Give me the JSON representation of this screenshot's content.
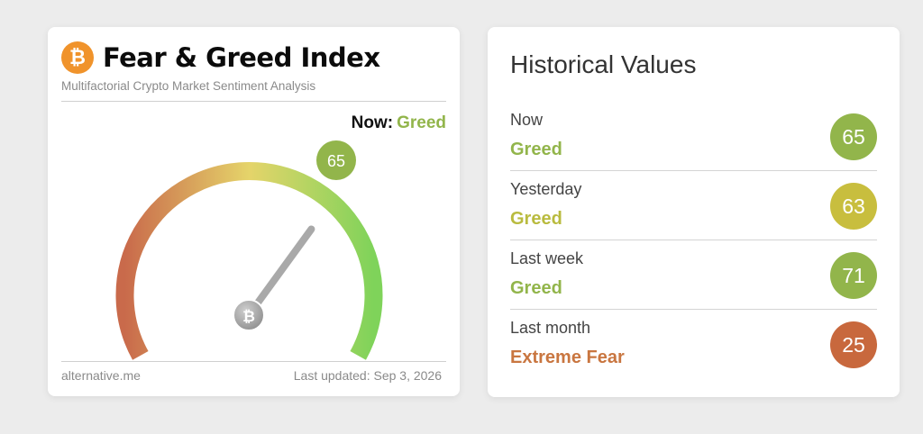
{
  "index_card": {
    "logo_glyph": "₿",
    "title": "Fear & Greed Index",
    "subtitle": "Multifactorial Crypto Market Sentiment Analysis",
    "now_label": "Now:",
    "now_value": "Greed",
    "gauge": {
      "value": 65,
      "value_label": "65",
      "min": 0,
      "max": 100,
      "hub_glyph": "₿",
      "colors": {
        "fear": "#c96a4b",
        "neutral": "#e5d46a",
        "greed": "#7fd35a",
        "badge": "#92b54b",
        "needle": "#a9a9a9"
      }
    },
    "footer_source": "alternative.me",
    "footer_updated": "Last updated: Sep 3, 2026"
  },
  "historical": {
    "title": "Historical Values",
    "rows": [
      {
        "label": "Now",
        "classification": "Greed",
        "value": "65",
        "text_color": "#92b54b",
        "badge_color": "#92b54b"
      },
      {
        "label": "Yesterday",
        "classification": "Greed",
        "value": "63",
        "text_color": "#b9bb3f",
        "badge_color": "#c8be3e"
      },
      {
        "label": "Last week",
        "classification": "Greed",
        "value": "71",
        "text_color": "#92b54b",
        "badge_color": "#92b54b"
      },
      {
        "label": "Last month",
        "classification": "Extreme Fear",
        "value": "25",
        "text_color": "#c97640",
        "badge_color": "#c8683d"
      }
    ]
  }
}
